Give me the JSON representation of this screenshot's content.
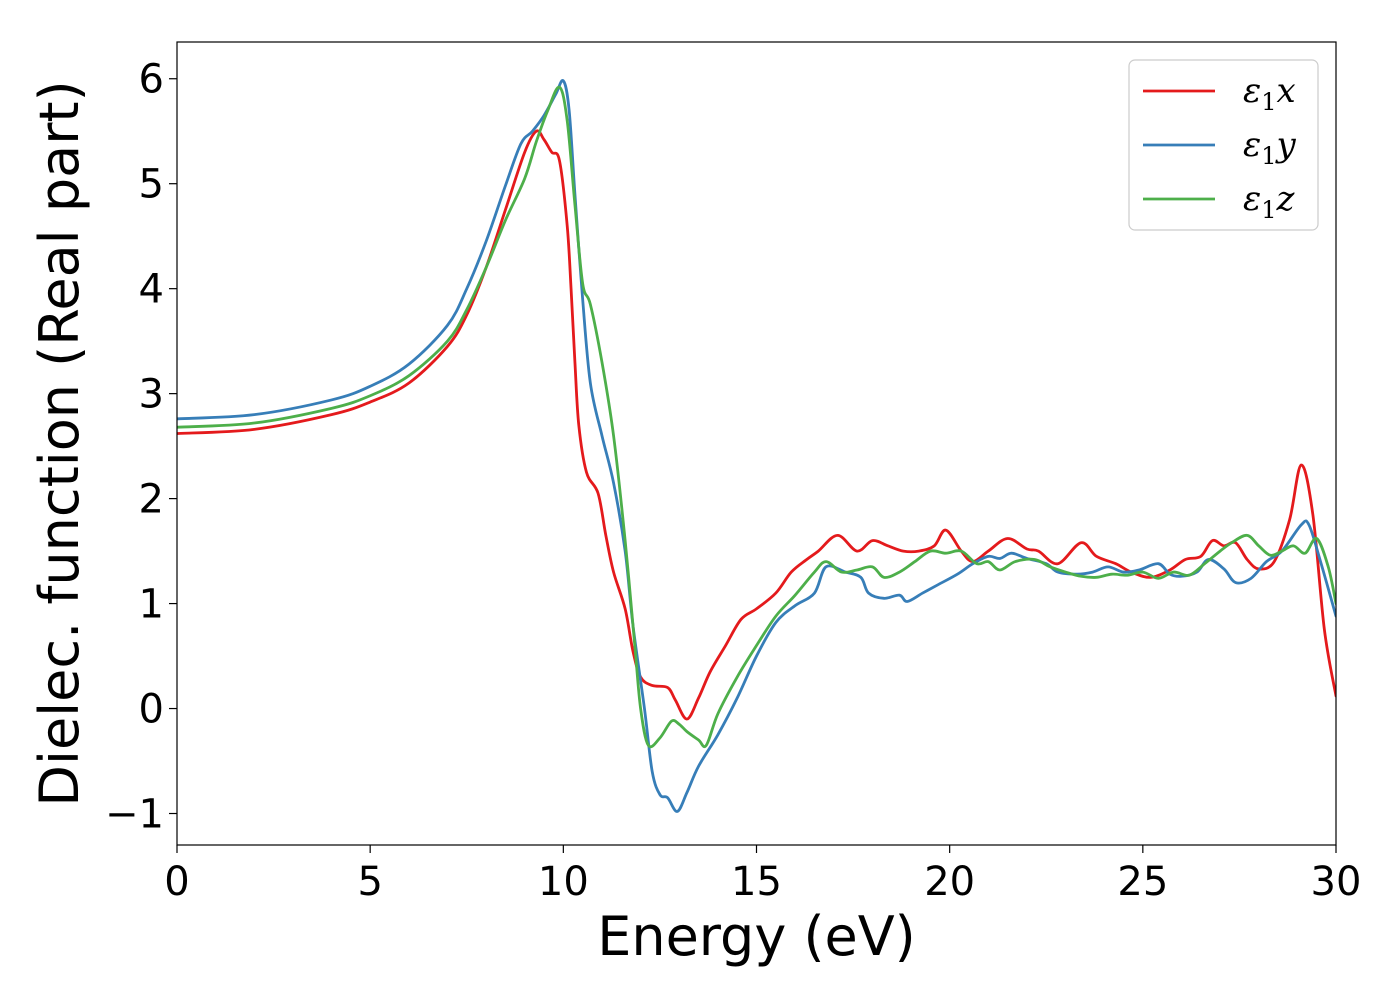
{
  "chart_data": {
    "type": "line",
    "xlabel": "Energy (eV)",
    "ylabel": "Dielec. function (Real part)",
    "xlim": [
      0,
      30
    ],
    "ylim": [
      -1.3,
      6.35
    ],
    "xticks": [
      0,
      5,
      10,
      15,
      20,
      25,
      30
    ],
    "yticks": [
      -1,
      0,
      1,
      2,
      3,
      4,
      5,
      6
    ],
    "xtick_labels": [
      "0",
      "5",
      "10",
      "15",
      "20",
      "25",
      "30"
    ],
    "ytick_labels": [
      "−1",
      "0",
      "1",
      "2",
      "3",
      "4",
      "5",
      "6"
    ],
    "grid": false,
    "legend_position": "top-right",
    "series": [
      {
        "name": "ε1x",
        "base": "ε",
        "sub": "1",
        "suffix": "x",
        "color": "#e41a1c",
        "points": [
          [
            0,
            2.62
          ],
          [
            2,
            2.66
          ],
          [
            4,
            2.8
          ],
          [
            5,
            2.92
          ],
          [
            6,
            3.1
          ],
          [
            7,
            3.45
          ],
          [
            7.5,
            3.75
          ],
          [
            8,
            4.2
          ],
          [
            8.5,
            4.75
          ],
          [
            9,
            5.3
          ],
          [
            9.3,
            5.5
          ],
          [
            9.5,
            5.42
          ],
          [
            9.7,
            5.3
          ],
          [
            9.9,
            5.22
          ],
          [
            10.1,
            4.6
          ],
          [
            10.2,
            4.0
          ],
          [
            10.3,
            3.3
          ],
          [
            10.4,
            2.7
          ],
          [
            10.6,
            2.25
          ],
          [
            10.9,
            2.05
          ],
          [
            11.1,
            1.65
          ],
          [
            11.3,
            1.3
          ],
          [
            11.6,
            0.95
          ],
          [
            11.8,
            0.55
          ],
          [
            12.0,
            0.3
          ],
          [
            12.3,
            0.22
          ],
          [
            12.7,
            0.2
          ],
          [
            12.9,
            0.08
          ],
          [
            13.2,
            -0.1
          ],
          [
            13.5,
            0.1
          ],
          [
            13.8,
            0.35
          ],
          [
            14.2,
            0.6
          ],
          [
            14.6,
            0.85
          ],
          [
            15,
            0.95
          ],
          [
            15.5,
            1.1
          ],
          [
            15.9,
            1.3
          ],
          [
            16.3,
            1.42
          ],
          [
            16.6,
            1.5
          ],
          [
            17.1,
            1.65
          ],
          [
            17.6,
            1.5
          ],
          [
            18,
            1.6
          ],
          [
            18.4,
            1.55
          ],
          [
            18.8,
            1.5
          ],
          [
            19.2,
            1.5
          ],
          [
            19.6,
            1.55
          ],
          [
            19.9,
            1.7
          ],
          [
            20.3,
            1.5
          ],
          [
            20.6,
            1.4
          ],
          [
            21.0,
            1.5
          ],
          [
            21.5,
            1.62
          ],
          [
            22.0,
            1.52
          ],
          [
            22.3,
            1.5
          ],
          [
            22.8,
            1.38
          ],
          [
            23.4,
            1.58
          ],
          [
            23.8,
            1.45
          ],
          [
            24.3,
            1.38
          ],
          [
            24.7,
            1.3
          ],
          [
            25.2,
            1.25
          ],
          [
            25.7,
            1.32
          ],
          [
            26.1,
            1.42
          ],
          [
            26.5,
            1.45
          ],
          [
            26.8,
            1.6
          ],
          [
            27.1,
            1.55
          ],
          [
            27.4,
            1.58
          ],
          [
            27.7,
            1.42
          ],
          [
            28.0,
            1.33
          ],
          [
            28.4,
            1.4
          ],
          [
            28.8,
            1.8
          ],
          [
            29.1,
            2.32
          ],
          [
            29.4,
            1.85
          ],
          [
            29.7,
            0.75
          ],
          [
            30,
            0.12
          ]
        ]
      },
      {
        "name": "ε1y",
        "base": "ε",
        "sub": "1",
        "suffix": "y",
        "color": "#377eb8",
        "points": [
          [
            0,
            2.76
          ],
          [
            2,
            2.8
          ],
          [
            4,
            2.94
          ],
          [
            5,
            3.07
          ],
          [
            6,
            3.28
          ],
          [
            7,
            3.65
          ],
          [
            7.5,
            4.0
          ],
          [
            8,
            4.45
          ],
          [
            8.5,
            4.98
          ],
          [
            8.9,
            5.38
          ],
          [
            9.2,
            5.5
          ],
          [
            9.5,
            5.65
          ],
          [
            9.8,
            5.85
          ],
          [
            10.0,
            5.98
          ],
          [
            10.15,
            5.7
          ],
          [
            10.3,
            4.9
          ],
          [
            10.5,
            3.9
          ],
          [
            10.7,
            3.1
          ],
          [
            11.0,
            2.6
          ],
          [
            11.3,
            2.15
          ],
          [
            11.6,
            1.5
          ],
          [
            11.8,
            0.8
          ],
          [
            12.1,
            0.0
          ],
          [
            12.3,
            -0.6
          ],
          [
            12.5,
            -0.82
          ],
          [
            12.7,
            -0.85
          ],
          [
            12.95,
            -0.98
          ],
          [
            13.2,
            -0.8
          ],
          [
            13.5,
            -0.55
          ],
          [
            14,
            -0.25
          ],
          [
            14.5,
            0.1
          ],
          [
            15,
            0.5
          ],
          [
            15.5,
            0.82
          ],
          [
            16,
            0.98
          ],
          [
            16.5,
            1.1
          ],
          [
            16.8,
            1.35
          ],
          [
            17.3,
            1.3
          ],
          [
            17.7,
            1.25
          ],
          [
            17.9,
            1.1
          ],
          [
            18.3,
            1.05
          ],
          [
            18.7,
            1.08
          ],
          [
            18.9,
            1.02
          ],
          [
            19.3,
            1.1
          ],
          [
            19.7,
            1.18
          ],
          [
            20.2,
            1.28
          ],
          [
            20.6,
            1.38
          ],
          [
            21.0,
            1.45
          ],
          [
            21.3,
            1.43
          ],
          [
            21.6,
            1.48
          ],
          [
            22.0,
            1.43
          ],
          [
            22.5,
            1.38
          ],
          [
            22.8,
            1.3
          ],
          [
            23.3,
            1.28
          ],
          [
            23.7,
            1.3
          ],
          [
            24.1,
            1.35
          ],
          [
            24.5,
            1.3
          ],
          [
            24.9,
            1.32
          ],
          [
            25.4,
            1.38
          ],
          [
            25.7,
            1.28
          ],
          [
            26.0,
            1.26
          ],
          [
            26.4,
            1.3
          ],
          [
            26.7,
            1.42
          ],
          [
            27.1,
            1.33
          ],
          [
            27.4,
            1.2
          ],
          [
            27.8,
            1.24
          ],
          [
            28.2,
            1.4
          ],
          [
            28.6,
            1.5
          ],
          [
            29.1,
            1.75
          ],
          [
            29.3,
            1.75
          ],
          [
            29.6,
            1.4
          ],
          [
            30,
            0.88
          ]
        ]
      },
      {
        "name": "ε1z",
        "base": "ε",
        "sub": "1",
        "suffix": "z",
        "color": "#4daf4a",
        "points": [
          [
            0,
            2.68
          ],
          [
            2,
            2.72
          ],
          [
            4,
            2.86
          ],
          [
            5,
            2.98
          ],
          [
            6,
            3.17
          ],
          [
            7,
            3.5
          ],
          [
            7.5,
            3.8
          ],
          [
            8,
            4.2
          ],
          [
            8.5,
            4.65
          ],
          [
            9.0,
            5.05
          ],
          [
            9.3,
            5.4
          ],
          [
            9.6,
            5.7
          ],
          [
            9.9,
            5.92
          ],
          [
            10.1,
            5.6
          ],
          [
            10.3,
            4.8
          ],
          [
            10.5,
            4.05
          ],
          [
            10.7,
            3.85
          ],
          [
            11.0,
            3.3
          ],
          [
            11.3,
            2.6
          ],
          [
            11.6,
            1.6
          ],
          [
            11.85,
            0.6
          ],
          [
            12.0,
            0.0
          ],
          [
            12.2,
            -0.35
          ],
          [
            12.5,
            -0.28
          ],
          [
            12.8,
            -0.12
          ],
          [
            13.0,
            -0.15
          ],
          [
            13.2,
            -0.22
          ],
          [
            13.5,
            -0.3
          ],
          [
            13.7,
            -0.35
          ],
          [
            14.0,
            -0.05
          ],
          [
            14.5,
            0.3
          ],
          [
            15,
            0.6
          ],
          [
            15.5,
            0.88
          ],
          [
            16,
            1.08
          ],
          [
            16.5,
            1.3
          ],
          [
            16.8,
            1.4
          ],
          [
            17.2,
            1.3
          ],
          [
            17.6,
            1.32
          ],
          [
            18.0,
            1.35
          ],
          [
            18.3,
            1.25
          ],
          [
            18.7,
            1.3
          ],
          [
            19.1,
            1.4
          ],
          [
            19.5,
            1.5
          ],
          [
            19.9,
            1.48
          ],
          [
            20.3,
            1.5
          ],
          [
            20.7,
            1.38
          ],
          [
            21.0,
            1.4
          ],
          [
            21.3,
            1.32
          ],
          [
            21.7,
            1.4
          ],
          [
            22.2,
            1.42
          ],
          [
            22.6,
            1.35
          ],
          [
            23.0,
            1.3
          ],
          [
            23.4,
            1.26
          ],
          [
            23.8,
            1.25
          ],
          [
            24.2,
            1.28
          ],
          [
            24.6,
            1.27
          ],
          [
            25.0,
            1.3
          ],
          [
            25.4,
            1.24
          ],
          [
            25.8,
            1.3
          ],
          [
            26.2,
            1.27
          ],
          [
            26.6,
            1.38
          ],
          [
            27.0,
            1.5
          ],
          [
            27.3,
            1.58
          ],
          [
            27.7,
            1.65
          ],
          [
            28.0,
            1.55
          ],
          [
            28.3,
            1.46
          ],
          [
            28.6,
            1.5
          ],
          [
            28.9,
            1.55
          ],
          [
            29.2,
            1.48
          ],
          [
            29.5,
            1.62
          ],
          [
            29.8,
            1.35
          ],
          [
            30,
            1.0
          ]
        ]
      }
    ]
  }
}
